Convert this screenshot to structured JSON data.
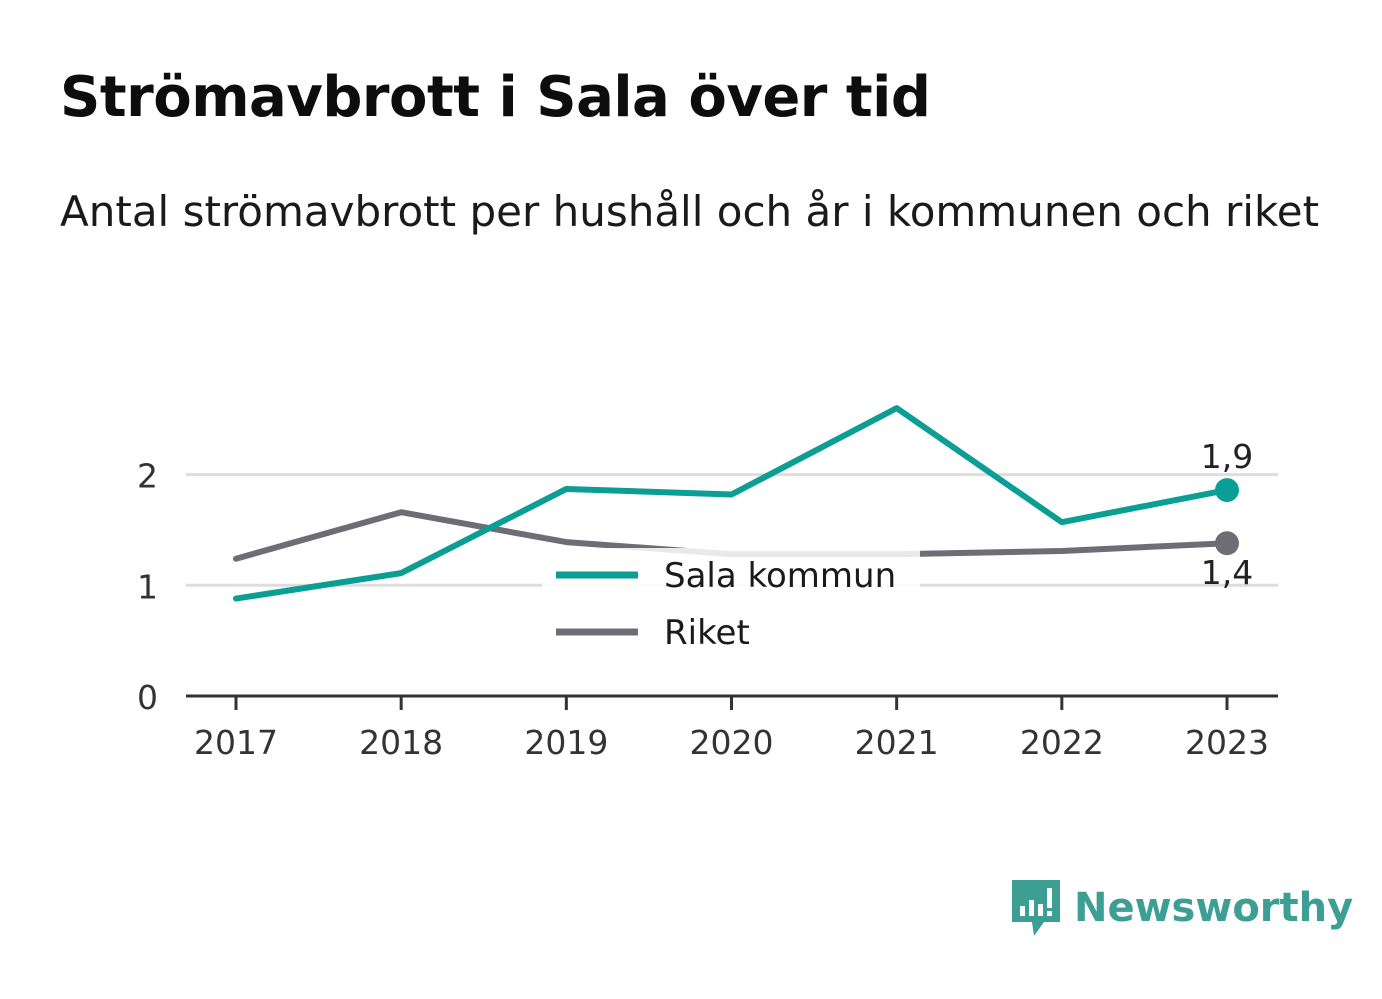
{
  "title": "Strömavbrott i Sala över tid",
  "subtitle": "Antal strömavbrott per hushåll och år i kommunen och riket",
  "brand": {
    "name": "Newsworthy",
    "icon": "newsworthy-logo-icon",
    "color": "#3d9e93"
  },
  "chart_data": {
    "type": "line",
    "x": [
      "2017",
      "2018",
      "2019",
      "2020",
      "2021",
      "2022",
      "2023"
    ],
    "series": [
      {
        "name": "Sala kommun",
        "color": "#0a9e94",
        "values": [
          0.88,
          1.11,
          1.87,
          1.82,
          2.6,
          1.57,
          1.86
        ],
        "end_label": "1,9"
      },
      {
        "name": "Riket",
        "color": "#6e6d75",
        "values": [
          1.24,
          1.66,
          1.39,
          1.28,
          1.28,
          1.31,
          1.38
        ],
        "end_label": "1,4"
      }
    ],
    "yticks": [
      0,
      1,
      2
    ],
    "ytick_labels": [
      "0",
      "1",
      "2"
    ],
    "ylim": [
      0,
      2.8
    ],
    "grid": true,
    "legend": "center"
  }
}
